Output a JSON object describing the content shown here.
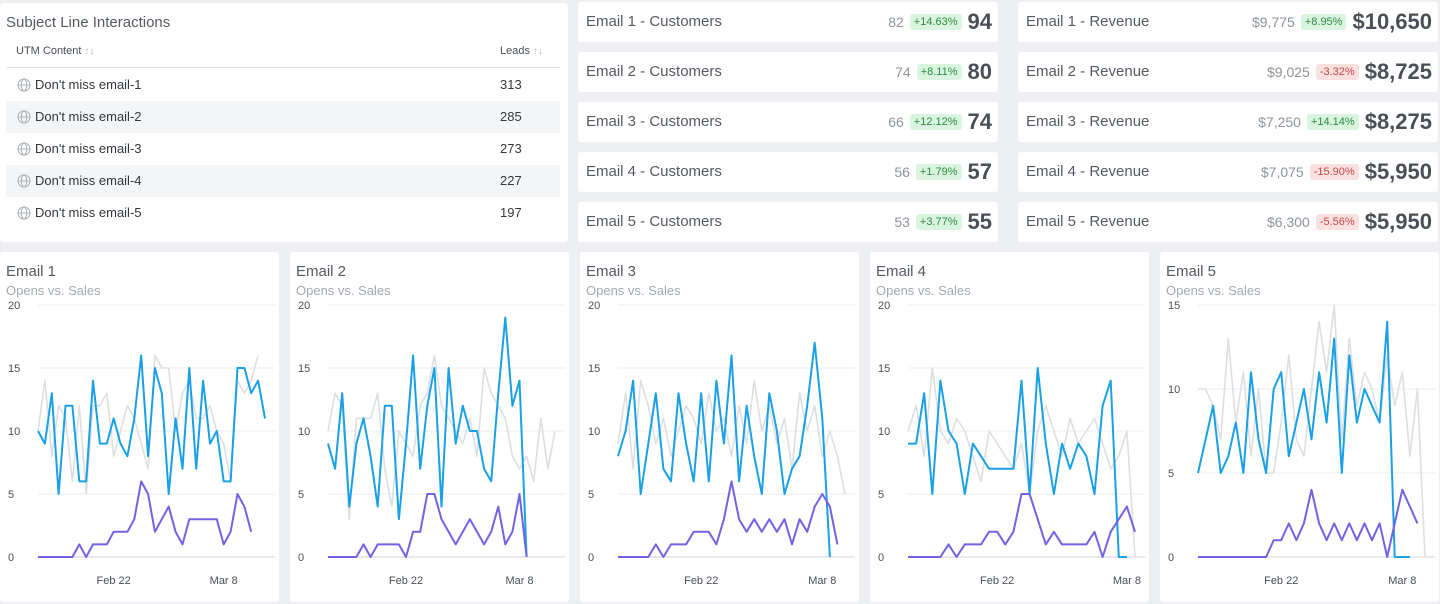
{
  "table": {
    "title": "Subject Line Interactions",
    "columns": [
      "UTM Content",
      "Leads"
    ],
    "rows": [
      {
        "name": "Don't miss email-1",
        "leads": "313"
      },
      {
        "name": "Don't miss email-2",
        "leads": "285"
      },
      {
        "name": "Don't miss email-3",
        "leads": "273"
      },
      {
        "name": "Don't miss email-4",
        "leads": "227"
      },
      {
        "name": "Don't miss email-5",
        "leads": "197"
      }
    ]
  },
  "customers": [
    {
      "label": "Email 1 - Customers",
      "prev": "82",
      "change": "+14.63%",
      "dir": "up",
      "value": "94"
    },
    {
      "label": "Email 2 - Customers",
      "prev": "74",
      "change": "+8.11%",
      "dir": "up",
      "value": "80"
    },
    {
      "label": "Email 3 - Customers",
      "prev": "66",
      "change": "+12.12%",
      "dir": "up",
      "value": "74"
    },
    {
      "label": "Email 4 - Customers",
      "prev": "56",
      "change": "+1.79%",
      "dir": "up",
      "value": "57"
    },
    {
      "label": "Email 5 - Customers",
      "prev": "53",
      "change": "+3.77%",
      "dir": "up",
      "value": "55"
    }
  ],
  "revenue": [
    {
      "label": "Email 1 - Revenue",
      "prev": "$9,775",
      "change": "+8.95%",
      "dir": "up",
      "value": "$10,650"
    },
    {
      "label": "Email 2 - Revenue",
      "prev": "$9,025",
      "change": "-3.32%",
      "dir": "down",
      "value": "$8,725"
    },
    {
      "label": "Email 3 - Revenue",
      "prev": "$7,250",
      "change": "+14.14%",
      "dir": "up",
      "value": "$8,275"
    },
    {
      "label": "Email 4 - Revenue",
      "prev": "$7,075",
      "change": "-15.90%",
      "dir": "down",
      "value": "$5,950"
    },
    {
      "label": "Email 5 - Revenue",
      "prev": "$6,300",
      "change": "-5.56%",
      "dir": "down",
      "value": "$5,950"
    }
  ],
  "colors": {
    "series_a": "#1aa0e6",
    "series_b": "#7262e4",
    "series_c": "#dddfe2",
    "badge_up": "#2f8a45",
    "badge_down": "#c64848"
  },
  "chart_data": [
    {
      "type": "line",
      "title": "Email 1",
      "subtitle": "Opens vs. Sales",
      "x_ticks": [
        "Feb 22",
        "Mar 8"
      ],
      "x_tick_index": [
        11,
        27
      ],
      "ylim": [
        0,
        20
      ],
      "y_ticks": [
        0,
        5,
        10,
        15,
        20
      ],
      "grid": true,
      "series": [
        {
          "values": [
            10,
            14,
            8,
            12,
            11,
            6,
            12,
            5,
            12,
            12,
            13,
            8,
            10,
            12,
            11,
            9,
            7,
            16,
            15,
            15,
            10,
            13,
            14,
            11,
            11,
            12,
            10,
            9,
            6,
            14,
            13,
            14,
            16
          ]
        },
        {
          "values": [
            10,
            9,
            13,
            5,
            12,
            12,
            6,
            6,
            14,
            9,
            9,
            11,
            9,
            8,
            11,
            16,
            8,
            15,
            13,
            5,
            11,
            7,
            15,
            7,
            14,
            9,
            10,
            6,
            6,
            15,
            15,
            13,
            14,
            11
          ]
        },
        {
          "values": [
            0,
            0,
            0,
            0,
            0,
            0,
            1,
            0,
            1,
            1,
            1,
            2,
            2,
            2,
            3,
            6,
            5,
            2,
            3,
            4,
            2,
            1,
            3,
            3,
            3,
            3,
            3,
            1,
            2,
            5,
            4,
            2
          ]
        }
      ]
    },
    {
      "type": "line",
      "title": "Email 2",
      "subtitle": "Opens vs. Sales",
      "x_ticks": [
        "Feb 22",
        "Mar 8"
      ],
      "x_tick_index": [
        11,
        27
      ],
      "ylim": [
        0,
        20
      ],
      "y_ticks": [
        0,
        5,
        10,
        15,
        20
      ],
      "grid": true,
      "series": [
        {
          "values": [
            10,
            13,
            12,
            3,
            11,
            11,
            11,
            13,
            7,
            4,
            10,
            9,
            8,
            12,
            13,
            16,
            12,
            11,
            10,
            9,
            11,
            8,
            15,
            13,
            12,
            11,
            8,
            7,
            8,
            6,
            11,
            7,
            10
          ]
        },
        {
          "values": [
            9,
            7,
            13,
            4,
            9,
            11,
            8,
            4,
            12,
            12,
            3,
            9,
            16,
            7,
            12,
            15,
            4,
            15,
            9,
            12,
            10,
            10,
            7,
            6,
            13,
            19,
            12,
            14,
            0
          ]
        },
        {
          "values": [
            0,
            0,
            0,
            0,
            0,
            1,
            0,
            1,
            1,
            1,
            1,
            0,
            2,
            2,
            5,
            5,
            3,
            2,
            1,
            2,
            3,
            2,
            1,
            2,
            4,
            1,
            2,
            5,
            0
          ]
        }
      ]
    },
    {
      "type": "line",
      "title": "Email 3",
      "subtitle": "Opens vs. Sales",
      "x_ticks": [
        "Feb 22",
        "Mar 8"
      ],
      "x_tick_index": [
        11,
        27
      ],
      "ylim": [
        0,
        20
      ],
      "y_ticks": [
        0,
        5,
        10,
        15,
        20
      ],
      "grid": true,
      "series": [
        {
          "values": [
            9,
            13,
            7,
            14,
            12,
            9,
            11,
            8,
            10,
            12,
            11,
            9,
            13,
            10,
            11,
            8,
            12,
            9,
            14,
            10,
            12,
            9,
            11,
            7,
            13,
            10,
            12,
            8,
            10,
            8,
            5
          ]
        },
        {
          "values": [
            8,
            10,
            14,
            5,
            9,
            13,
            7,
            6,
            13,
            9,
            6,
            13,
            6,
            14,
            9,
            16,
            6,
            12,
            8,
            5,
            13,
            10,
            5,
            7,
            8,
            12,
            17,
            11,
            0
          ]
        },
        {
          "values": [
            0,
            0,
            0,
            0,
            0,
            1,
            0,
            1,
            1,
            1,
            2,
            2,
            2,
            1,
            3,
            6,
            3,
            2,
            3,
            2,
            3,
            2,
            3,
            1,
            3,
            2,
            4,
            5,
            4,
            1
          ]
        }
      ]
    },
    {
      "type": "line",
      "title": "Email 4",
      "subtitle": "Opens vs. Sales",
      "x_ticks": [
        "Feb 22",
        "Mar 8"
      ],
      "x_tick_index": [
        11,
        27
      ],
      "ylim": [
        0,
        20
      ],
      "y_ticks": [
        0,
        5,
        10,
        15,
        20
      ],
      "grid": true,
      "series": [
        {
          "values": [
            10,
            12,
            8,
            15,
            10,
            9,
            11,
            10,
            8,
            6,
            10,
            9,
            8,
            7,
            9,
            5,
            10,
            12,
            10,
            8,
            11,
            9,
            10,
            11,
            9,
            7,
            8,
            10,
            0
          ]
        },
        {
          "values": [
            9,
            9,
            13,
            5,
            14,
            10,
            9,
            5,
            9,
            8,
            7,
            7,
            7,
            7,
            14,
            5,
            15,
            9,
            5,
            9,
            7,
            9,
            8,
            5,
            12,
            14,
            0,
            0
          ]
        },
        {
          "values": [
            0,
            0,
            0,
            0,
            0,
            1,
            0,
            1,
            1,
            1,
            2,
            2,
            1,
            2,
            5,
            5,
            3,
            1,
            2,
            1,
            1,
            1,
            1,
            2,
            0,
            2,
            3,
            4,
            2
          ]
        }
      ]
    },
    {
      "type": "line",
      "title": "Email 5",
      "subtitle": "Opens vs. Sales",
      "x_ticks": [
        "Feb 22",
        "Mar 8"
      ],
      "x_tick_index": [
        11,
        27
      ],
      "ylim": [
        0,
        15
      ],
      "y_ticks": [
        0,
        5,
        10,
        15
      ],
      "grid": true,
      "series": [
        {
          "values": [
            10,
            10,
            9,
            7,
            13,
            8,
            11,
            6,
            10,
            5,
            5,
            8,
            12,
            7,
            6,
            10,
            14,
            11,
            15,
            7,
            13,
            9,
            11,
            10,
            8,
            12,
            9,
            11,
            6,
            10,
            0
          ]
        },
        {
          "values": [
            5,
            7,
            9,
            5,
            6,
            8,
            5,
            11,
            7,
            5,
            10,
            11,
            6,
            8,
            10,
            7,
            11,
            8,
            13,
            5,
            12,
            8,
            10,
            9,
            8,
            14,
            0,
            0,
            0
          ]
        },
        {
          "values": [
            0,
            0,
            0,
            0,
            0,
            0,
            0,
            0,
            0,
            0,
            1,
            1,
            2,
            1,
            2,
            4,
            2,
            1,
            2,
            1,
            2,
            1,
            2,
            1,
            2,
            0,
            2,
            4,
            3,
            2
          ]
        }
      ]
    }
  ]
}
